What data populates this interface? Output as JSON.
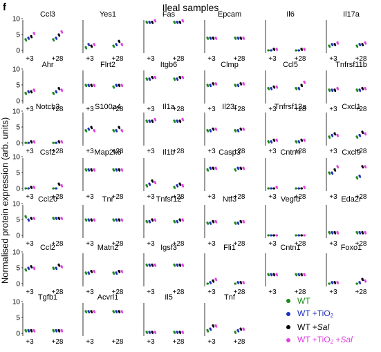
{
  "panel_letter": "f",
  "figure_title": "Ileal samples",
  "ylabel": "Normalised protein expression (arb. units)",
  "legend": [
    {
      "key": "wt",
      "color": "#1a8a1a",
      "a": "WT",
      "sub": "",
      "b": "",
      "mid": "",
      "b2": ""
    },
    {
      "key": "tio2",
      "color": "#1f2fbd",
      "a": "WT +TiO",
      "sub": "2",
      "b": "",
      "mid": "",
      "b2": ""
    },
    {
      "key": "sal",
      "color": "#000000",
      "a": "WT +",
      "sub": "",
      "b": "Sal",
      "mid": "",
      "b2": ""
    },
    {
      "key": "both",
      "color": "#e040e0",
      "a": "WT +TiO",
      "sub": "2",
      "mid": " +",
      "b": "",
      "b2": "Sal"
    }
  ],
  "chart_data": {
    "type": "scatter",
    "layout": "small-multiples",
    "ylim": [
      0,
      10
    ],
    "yticks": [
      0,
      5,
      10
    ],
    "x_labels": [
      "+3",
      "+28"
    ],
    "group_colors": {
      "wt": "#1a8a1a",
      "tio2": "#1f2fbd",
      "sal": "#000000",
      "both": "#e040e0"
    },
    "panels": [
      {
        "name": "Ccl3",
        "values": {
          "+3": [
            3.5,
            4,
            4.5,
            5.5
          ],
          "+28": [
            3.5,
            4,
            5,
            6
          ]
        }
      },
      {
        "name": "Yes1",
        "values": {
          "+3": [
            1,
            2,
            1.5,
            2
          ],
          "+28": [
            1.5,
            2,
            3,
            2
          ]
        }
      },
      {
        "name": "Fas",
        "values": {
          "+3": [
            9,
            9,
            9,
            9.5
          ],
          "+28": [
            9,
            9,
            9,
            9.5
          ]
        }
      },
      {
        "name": "Epcam",
        "values": {
          "+3": [
            4,
            4,
            4,
            4
          ],
          "+28": [
            4,
            4,
            4,
            4
          ]
        }
      },
      {
        "name": "Il6",
        "values": {
          "+3": [
            0,
            0,
            0.5,
            0.5
          ],
          "+28": [
            0,
            0,
            0.5,
            0.5
          ]
        }
      },
      {
        "name": "Il17a",
        "values": {
          "+3": [
            1.5,
            2,
            2,
            2.5
          ],
          "+28": [
            1.5,
            2,
            2,
            2.5
          ]
        }
      },
      {
        "name": "Ahr",
        "values": {
          "+3": [
            2.5,
            3,
            3,
            3.5
          ],
          "+28": [
            2.5,
            3,
            4,
            3.5
          ]
        }
      },
      {
        "name": "Flrt2",
        "values": {
          "+3": [
            5,
            5,
            5,
            5
          ],
          "+28": [
            4.5,
            5,
            5,
            5
          ]
        }
      },
      {
        "name": "Itgb6",
        "values": {
          "+3": [
            7,
            7,
            7.5,
            7.5
          ],
          "+28": [
            7,
            7,
            7.5,
            7.5
          ]
        }
      },
      {
        "name": "Clmp",
        "values": {
          "+3": [
            5,
            5,
            5.5,
            5.5
          ],
          "+28": [
            5,
            5,
            5.5,
            5.5
          ]
        }
      },
      {
        "name": "Ccl5",
        "values": {
          "+3": [
            4,
            4,
            4.5,
            4.5
          ],
          "+28": [
            4,
            4,
            5,
            6
          ]
        }
      },
      {
        "name": "Tnfrsf11b",
        "values": {
          "+3": [
            3.5,
            3.5,
            3.5,
            4
          ],
          "+28": [
            3.5,
            3.5,
            4,
            4
          ]
        }
      },
      {
        "name": "Notch3",
        "values": {
          "+3": [
            0,
            0,
            0.5,
            0.5
          ],
          "+28": [
            0,
            0,
            0.5,
            0.5
          ]
        }
      },
      {
        "name": "S100a4",
        "values": {
          "+3": [
            4,
            4.5,
            5,
            4
          ],
          "+28": [
            4,
            4,
            5,
            4
          ]
        }
      },
      {
        "name": "Il1a",
        "values": {
          "+3": [
            7,
            7,
            7,
            7.5
          ],
          "+28": [
            7,
            7,
            7,
            7.5
          ]
        }
      },
      {
        "name": "Il23r",
        "values": {
          "+3": [
            4,
            4,
            4.5,
            4.5
          ],
          "+28": [
            4,
            4,
            4.5,
            4.5
          ]
        }
      },
      {
        "name": "Tnfrsf12a",
        "values": {
          "+3": [
            0.5,
            0.5,
            1,
            1
          ],
          "+28": [
            0.5,
            0.5,
            1,
            1
          ]
        }
      },
      {
        "name": "Cxcl1",
        "values": {
          "+3": [
            2,
            2.5,
            3,
            2.5
          ],
          "+28": [
            2,
            2.5,
            3.5,
            3
          ]
        }
      },
      {
        "name": "Csf2",
        "values": {
          "+3": [
            0,
            0,
            0.5,
            0.5
          ],
          "+28": [
            0,
            0,
            1.5,
            1
          ]
        }
      },
      {
        "name": "Map2k6",
        "values": {
          "+3": [
            6,
            6,
            6,
            6
          ],
          "+28": [
            6,
            6,
            6,
            6
          ]
        }
      },
      {
        "name": "Il1b",
        "values": {
          "+3": [
            1,
            1.5,
            2.5,
            2
          ],
          "+28": [
            0.5,
            1,
            1.5,
            1
          ]
        }
      },
      {
        "name": "Casp3",
        "values": {
          "+3": [
            6,
            6.5,
            6.5,
            6.5
          ],
          "+28": [
            6,
            6.5,
            6.5,
            6.5
          ]
        }
      },
      {
        "name": "Cntn4",
        "values": {
          "+3": [
            0,
            0,
            0,
            0.5
          ],
          "+28": [
            0,
            0,
            0,
            0.5
          ]
        }
      },
      {
        "name": "Cxcl9",
        "values": {
          "+3": [
            5,
            5,
            6,
            7
          ],
          "+28": [
            3.5,
            4,
            7,
            7
          ]
        }
      },
      {
        "name": "Ccl20",
        "values": {
          "+3": [
            6,
            5,
            5.5,
            5.5
          ],
          "+28": [
            5.5,
            5.5,
            5.5,
            5.5
          ]
        }
      },
      {
        "name": "Tnr",
        "values": {
          "+3": [
            5,
            5,
            5,
            5
          ],
          "+28": [
            5,
            5,
            5,
            5
          ]
        }
      },
      {
        "name": "Tnfsf12",
        "values": {
          "+3": [
            4.5,
            4.5,
            5,
            5
          ],
          "+28": [
            4.5,
            4.5,
            5,
            5
          ]
        }
      },
      {
        "name": "Ntf3",
        "values": {
          "+3": [
            4,
            4,
            4.5,
            4.5
          ],
          "+28": [
            4,
            4,
            4.5,
            4.5
          ]
        }
      },
      {
        "name": "Vegfd",
        "values": {
          "+3": [
            0,
            0,
            0,
            0
          ],
          "+28": [
            0,
            0,
            0,
            0
          ]
        }
      },
      {
        "name": "Eda2r",
        "values": {
          "+3": [
            1,
            1,
            1,
            1
          ],
          "+28": [
            1,
            1,
            1,
            1
          ]
        }
      },
      {
        "name": "Ccl2",
        "values": {
          "+3": [
            4.5,
            5,
            5.5,
            5
          ],
          "+28": [
            5,
            5,
            6,
            5.5
          ]
        }
      },
      {
        "name": "Matn2",
        "values": {
          "+3": [
            3.5,
            3.5,
            4,
            4
          ],
          "+28": [
            3.5,
            3.5,
            4,
            4
          ]
        }
      },
      {
        "name": "Igsf3",
        "values": {
          "+3": [
            6,
            6,
            6,
            6
          ],
          "+28": [
            6,
            6,
            6,
            6
          ]
        }
      },
      {
        "name": "Fli1",
        "values": {
          "+3": [
            0,
            0.5,
            1,
            1.5
          ],
          "+28": [
            0,
            0.5,
            0.5,
            0.5
          ]
        }
      },
      {
        "name": "Cntn1",
        "values": {
          "+3": [
            3,
            3,
            3,
            3
          ],
          "+28": [
            3,
            3,
            3,
            3
          ]
        }
      },
      {
        "name": "Foxo1",
        "values": {
          "+3": [
            0,
            0.5,
            0.5,
            0.5
          ],
          "+28": [
            0,
            0.5,
            1.5,
            1
          ]
        }
      },
      {
        "name": "Tgfb1",
        "values": {
          "+3": [
            1,
            1,
            1,
            1
          ],
          "+28": [
            1,
            1,
            1,
            1
          ]
        }
      },
      {
        "name": "Acvrl1",
        "values": {
          "+3": [
            7,
            7,
            7,
            7
          ],
          "+28": [
            7,
            7,
            7,
            7
          ]
        }
      },
      {
        "name": "Il5",
        "values": {
          "+3": [
            0.5,
            0.5,
            0.5,
            0.5
          ],
          "+28": [
            0.5,
            0.5,
            0.5,
            0.5
          ]
        }
      },
      {
        "name": "Tnf",
        "values": {
          "+3": [
            1,
            1.5,
            2.5,
            2.5
          ],
          "+28": [
            0.5,
            1,
            1.5,
            1.5
          ]
        }
      }
    ]
  }
}
